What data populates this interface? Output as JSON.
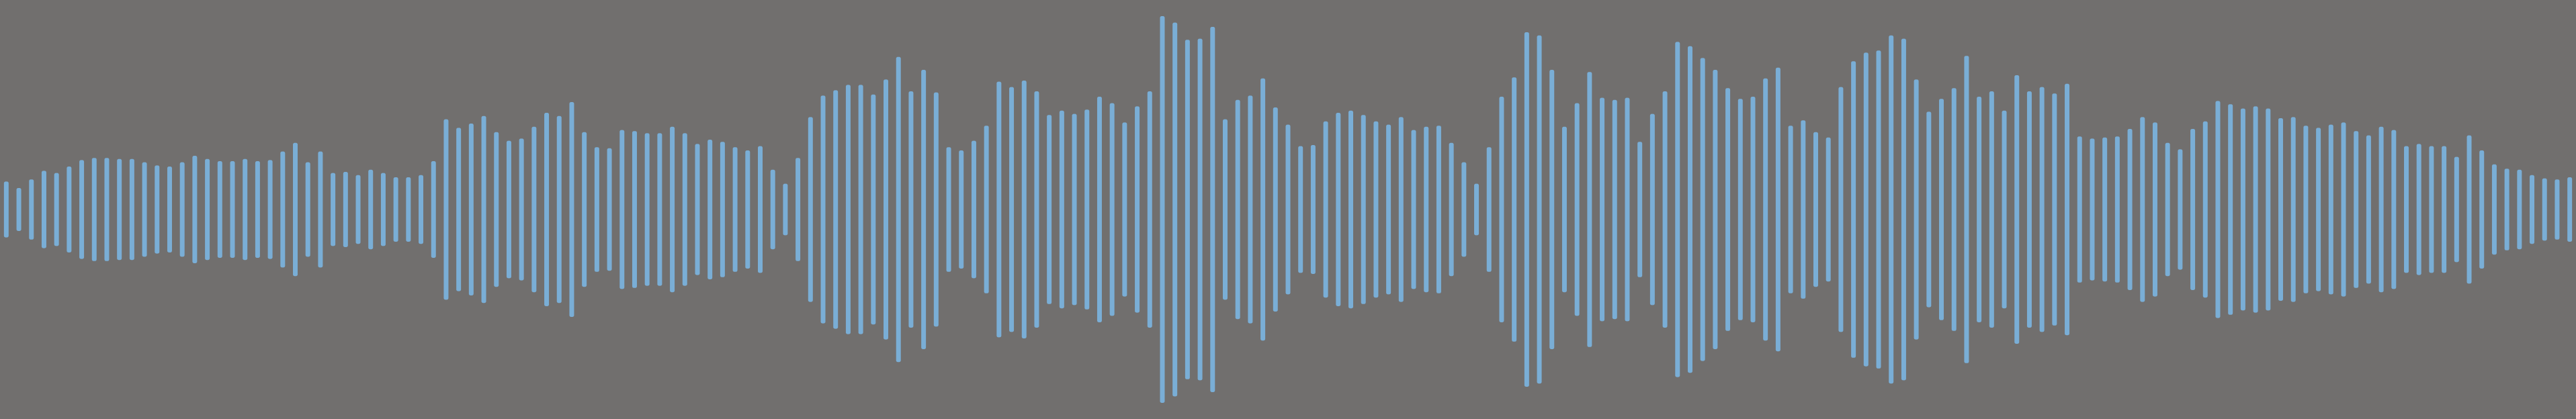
{
  "theme": {
    "background": "#716f6e",
    "waveform_color": "#7aaed6"
  },
  "waveform": {
    "peaks": [
      0.26,
      0.2,
      0.28,
      0.36,
      0.34,
      0.4,
      0.46,
      0.48,
      0.48,
      0.47,
      0.47,
      0.44,
      0.41,
      0.4,
      0.44,
      0.5,
      0.47,
      0.45,
      0.45,
      0.47,
      0.45,
      0.46,
      0.54,
      0.62,
      0.44,
      0.54,
      0.34,
      0.35,
      0.32,
      0.37,
      0.34,
      0.3,
      0.3,
      0.32,
      0.45,
      0.84,
      0.76,
      0.8,
      0.87,
      0.72,
      0.64,
      0.66,
      0.77,
      0.9,
      0.87,
      1.0,
      0.72,
      0.58,
      0.57,
      0.74,
      0.73,
      0.71,
      0.71,
      0.77,
      0.71,
      0.61,
      0.65,
      0.63,
      0.58,
      0.55,
      0.59,
      0.37,
      0.24,
      0.48,
      0.86,
      1.06,
      1.11,
      1.16,
      1.16,
      1.07,
      1.21,
      1.42,
      1.1,
      1.3,
      1.09,
      0.58,
      0.55,
      0.64,
      0.78,
      1.19,
      1.14,
      1.2,
      1.1,
      0.88,
      0.92,
      0.89,
      0.93,
      1.05,
      0.99,
      0.81,
      0.96,
      1.1,
      1.8,
      1.74,
      1.58,
      1.59,
      1.7,
      0.84,
      1.02,
      1.06,
      1.22,
      0.95,
      0.79,
      0.59,
      0.6,
      0.82,
      0.9,
      0.92,
      0.88,
      0.82,
      0.79,
      0.86,
      0.74,
      0.77,
      0.78,
      0.62,
      0.44,
      0.24,
      0.58,
      1.05,
      1.23,
      1.65,
      1.62,
      1.3,
      0.77,
      0.99,
      1.28,
      1.04,
      1.02,
      1.04,
      0.63,
      0.89,
      1.1,
      1.56,
      1.52,
      1.41,
      1.3,
      1.13,
      1.03,
      1.05,
      1.22,
      1.32,
      0.78,
      0.83,
      0.72,
      0.67,
      1.14,
      1.38,
      1.46,
      1.48,
      1.62,
      1.59,
      1.21,
      0.91,
      1.03,
      1.13,
      1.43,
      1.05,
      1.1,
      0.92,
      1.25,
      1.1,
      1.14,
      1.08,
      1.17,
      0.68,
      0.66,
      0.67,
      0.68,
      0.75,
      0.86,
      0.81,
      0.62,
      0.56,
      0.75,
      0.82,
      1.01,
      0.98,
      0.94,
      0.96,
      0.94,
      0.85,
      0.86,
      0.78,
      0.76,
      0.79,
      0.81,
      0.73,
      0.69,
      0.77,
      0.74,
      0.59,
      0.61,
      0.59,
      0.59,
      0.49,
      0.69,
      0.55,
      0.42,
      0.38,
      0.37,
      0.32,
      0.29,
      0.28,
      0.3
    ]
  }
}
